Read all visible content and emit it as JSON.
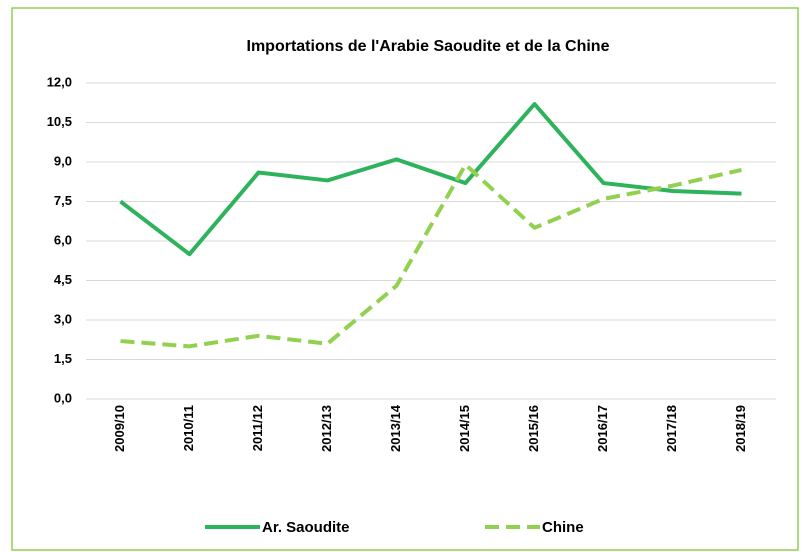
{
  "chart_data": {
    "type": "line",
    "title": "Importations de l'Arabie Saoudite et de la Chine",
    "categories": [
      "2009/10",
      "2010/11",
      "2011/12",
      "2012/13",
      "2013/14",
      "2014/15",
      "2015/16",
      "2016/17",
      "2017/18",
      "2018/19"
    ],
    "series": [
      {
        "name": "Ar. Saoudite",
        "color": "#2eb35c",
        "dash": "solid",
        "values": [
          7.5,
          5.5,
          8.6,
          8.3,
          9.1,
          8.2,
          11.2,
          8.2,
          7.9,
          7.8
        ]
      },
      {
        "name": "Chine",
        "color": "#92d050",
        "dash": "dashed",
        "values": [
          2.2,
          2.0,
          2.4,
          2.1,
          4.3,
          8.9,
          6.5,
          7.6,
          8.1,
          8.7
        ]
      }
    ],
    "ylim": [
      0,
      12
    ],
    "yticks": [
      {
        "value": 0,
        "label": "0,0"
      },
      {
        "value": 1.5,
        "label": "1,5"
      },
      {
        "value": 3,
        "label": "3,0"
      },
      {
        "value": 4.5,
        "label": "4,5"
      },
      {
        "value": 6,
        "label": "6,0"
      },
      {
        "value": 7.5,
        "label": "7,5"
      },
      {
        "value": 9,
        "label": "9,0"
      },
      {
        "value": 10.5,
        "label": "10,5"
      },
      {
        "value": 12,
        "label": "12,0"
      }
    ],
    "grid": true,
    "legend": "bottom"
  }
}
